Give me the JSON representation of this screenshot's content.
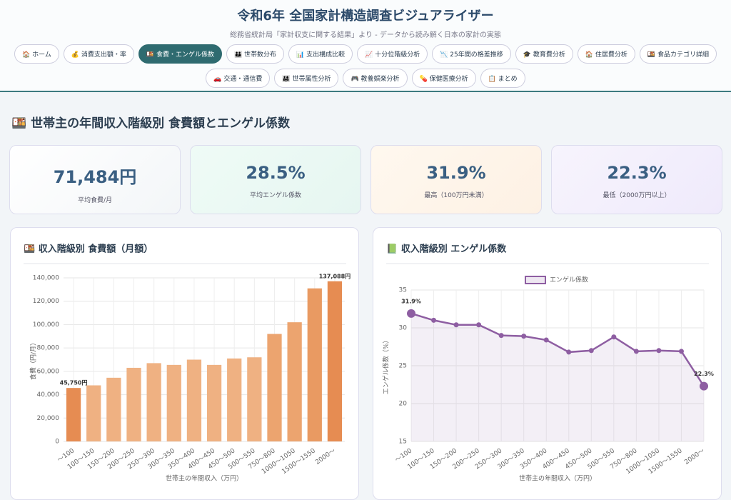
{
  "header": {
    "title": "令和6年 全国家計構造調査ビジュアライザー",
    "subtitle": "総務省統計局「家計収支に関する結果」より - データから読み解く日本の家計の実態"
  },
  "nav": [
    [
      "🏠 ホーム",
      "💰 消費支出額・率",
      "🍱 食費・エンゲル係数",
      "👪 世帯数分布",
      "📊 支出構成比較",
      "📈 十分位階級分析",
      "📉 25年間の格差推移",
      "🎓 教育費分析",
      "🏠 住居費分析",
      "🍱 食品カテゴリ詳細"
    ],
    [
      "🚗 交通・通信費",
      "👨‍👩‍👧 世帯属性分析",
      "🎮 教養娯楽分析",
      "💊 保健医療分析",
      "📋 まとめ"
    ]
  ],
  "section_title": "🍱 世帯主の年間収入階級別 食費額とエンゲル係数",
  "cards": [
    {
      "value": "71,484円",
      "label": "平均食費/月"
    },
    {
      "value": "28.5%",
      "label": "平均エンゲル係数"
    },
    {
      "value": "31.9%",
      "label": "最高（100万円未満）"
    },
    {
      "value": "22.3%",
      "label": "最低（2000万円以上）"
    }
  ],
  "chart_data": [
    {
      "type": "bar",
      "title": "🍱 収入階級別 食費額（月額）",
      "x_label": "世帯主の年間収入（万円）",
      "y_label": "食費（円/月）",
      "categories": [
        "～100",
        "100～150",
        "150～200",
        "200～250",
        "250～300",
        "300～350",
        "350～400",
        "400～450",
        "450～500",
        "500～550",
        "750～800",
        "1000～1050",
        "1500～1550",
        "2000～"
      ],
      "values": [
        45750,
        48000,
        54500,
        63000,
        67000,
        65500,
        70000,
        65500,
        71000,
        72000,
        92000,
        102000,
        131000,
        137088
      ],
      "value_labels": [
        "45,750円",
        null,
        null,
        null,
        null,
        null,
        null,
        null,
        null,
        null,
        null,
        null,
        null,
        "137,088円"
      ],
      "colors": [
        "#e68c52",
        "#efb182",
        "#efb182",
        "#efb182",
        "#efb182",
        "#efb182",
        "#efb182",
        "#efb182",
        "#efb182",
        "#efb182",
        "#eca46f",
        "#eca46f",
        "#e99a62",
        "#e68c52"
      ],
      "ylim": [
        0,
        140000
      ],
      "yticks": [
        0,
        {
          "value": 20000,
          "label": "20,000"
        },
        {
          "value": 40000,
          "label": "40,000"
        },
        {
          "value": 60000,
          "label": "60,000"
        },
        {
          "value": 80000,
          "label": "80,000"
        },
        {
          "value": 100000,
          "label": "100,000"
        },
        {
          "value": 120000,
          "label": "120,000"
        },
        {
          "value": 140000,
          "label": "140,000"
        }
      ],
      "grid": true
    },
    {
      "type": "line",
      "title": "📗 収入階級別 エンゲル係数",
      "x_label": "世帯主の年間収入（万円）",
      "y_label": "エンゲル係数（%）",
      "legend": "top",
      "categories": [
        "～100",
        "100～150",
        "150～200",
        "200～250",
        "250～300",
        "300～350",
        "350～400",
        "400～450",
        "450～500",
        "500～550",
        "750～800",
        "1000～1050",
        "1500～1550",
        "2000～"
      ],
      "series": [
        {
          "name": "エンゲル係数",
          "color": "#8e5ea2",
          "values": [
            31.9,
            31.0,
            30.4,
            30.4,
            29.0,
            28.9,
            28.4,
            26.8,
            27.0,
            28.8,
            26.9,
            27.0,
            26.9,
            22.3
          ],
          "value_labels": [
            "31.9%",
            null,
            null,
            null,
            null,
            null,
            null,
            null,
            null,
            null,
            null,
            null,
            null,
            "22.3%"
          ]
        }
      ],
      "ylim": [
        15,
        35
      ],
      "yticks": [
        15,
        20,
        25,
        30,
        35
      ],
      "grid": true
    }
  ]
}
